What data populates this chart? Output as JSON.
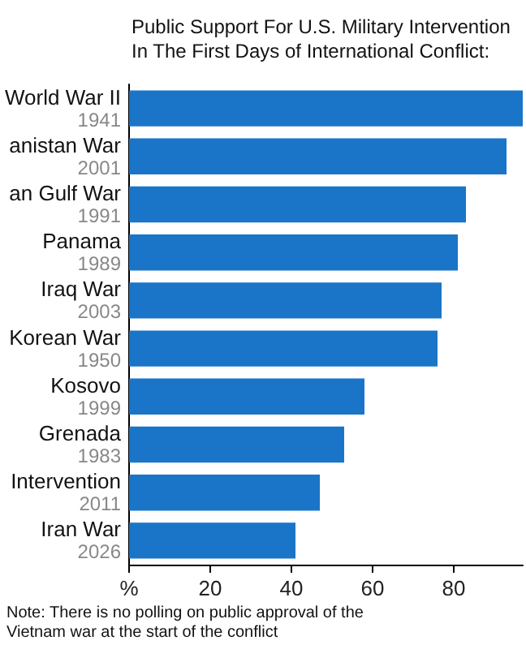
{
  "chart_data": {
    "type": "bar",
    "orientation": "horizontal",
    "title": "Public Support For U.S. Military Intervention In The First Days of International Conflict:",
    "categories": [
      "World War II\n1941",
      "anistan War\n2001",
      "an Gulf War\n1991",
      "Panama\n1989",
      "Iraq War\n2003",
      "Korean War\n1950",
      "Kosovo\n1999",
      "Grenada\n1983",
      "Intervention\n2011",
      "Iran War\n2026"
    ],
    "values": [
      97,
      93,
      83,
      81,
      77,
      76,
      58,
      53,
      47,
      41
    ],
    "color": "#1a75c8",
    "xlim": [
      0,
      97
    ],
    "xticks": [
      {
        "value": 0,
        "label": "%"
      },
      20,
      40,
      60,
      80
    ],
    "grid": false,
    "annotations": [
      "Note: There is no polling on public approval of the Vietnam war at the start of the conflict"
    ]
  }
}
